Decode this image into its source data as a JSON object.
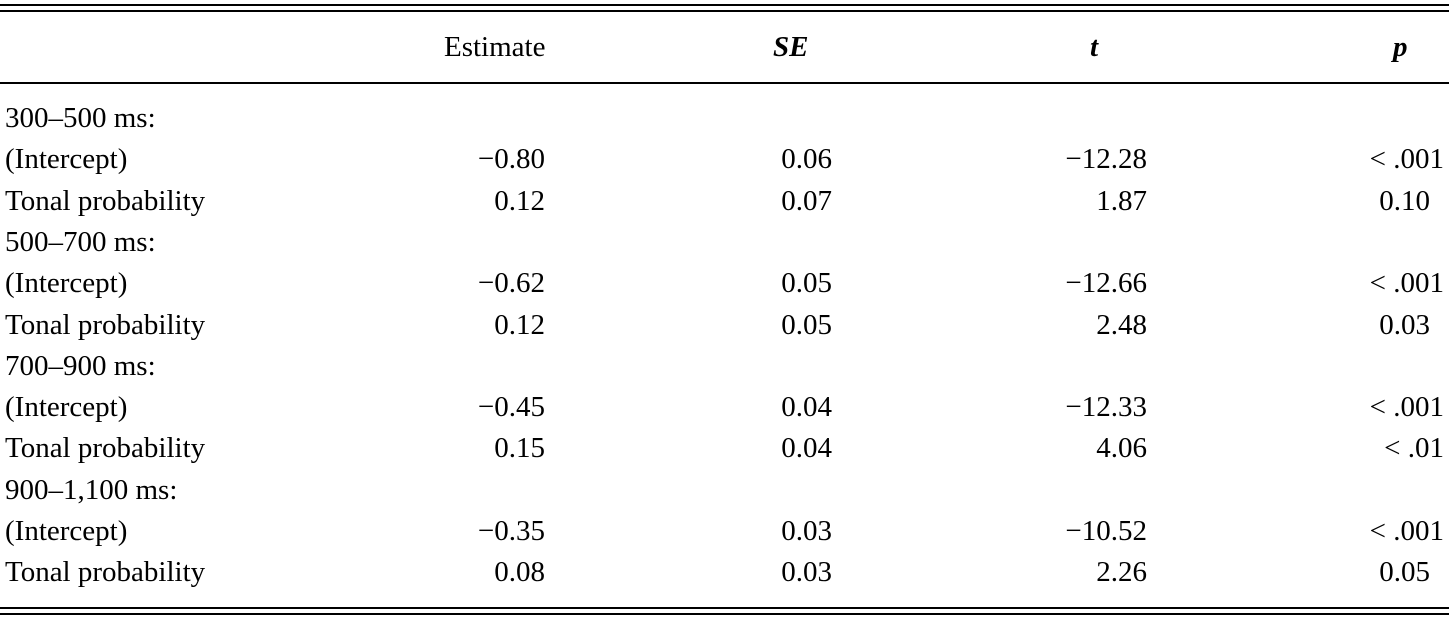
{
  "header": {
    "estimate": "Estimate",
    "se": "SE",
    "t": "t",
    "p": "p"
  },
  "groups": [
    {
      "label": "300–500 ms:",
      "rows": [
        {
          "term": "(Intercept)",
          "estimate": "−0.80",
          "se": "0.06",
          "t": "−12.28",
          "p": "< .001"
        },
        {
          "term": "Tonal probability",
          "estimate": "0.12",
          "se": "0.07",
          "t": "1.87",
          "p": "0.10"
        }
      ]
    },
    {
      "label": "500–700 ms:",
      "rows": [
        {
          "term": "(Intercept)",
          "estimate": "−0.62",
          "se": "0.05",
          "t": "−12.66",
          "p": "< .001"
        },
        {
          "term": "Tonal probability",
          "estimate": "0.12",
          "se": "0.05",
          "t": "2.48",
          "p": "0.03"
        }
      ]
    },
    {
      "label": "700–900 ms:",
      "rows": [
        {
          "term": "(Intercept)",
          "estimate": "−0.45",
          "se": "0.04",
          "t": "−12.33",
          "p": "< .001"
        },
        {
          "term": "Tonal probability",
          "estimate": "0.15",
          "se": "0.04",
          "t": "4.06",
          "p": "< .01"
        }
      ]
    },
    {
      "label": "900–1,100 ms:",
      "rows": [
        {
          "term": "(Intercept)",
          "estimate": "−0.35",
          "se": "0.03",
          "t": "−10.52",
          "p": "< .001"
        },
        {
          "term": "Tonal probability",
          "estimate": "0.08",
          "se": "0.03",
          "t": "2.26",
          "p": "0.05"
        }
      ]
    }
  ]
}
